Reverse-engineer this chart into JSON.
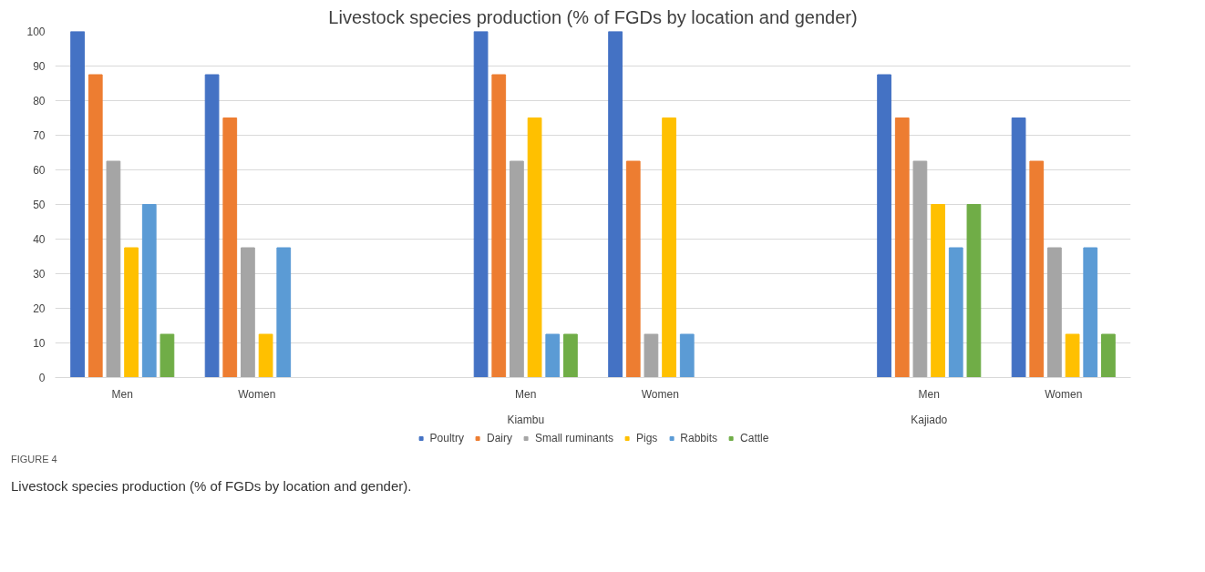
{
  "chart_data": {
    "type": "bar",
    "title": "Livestock species production (% of FGDs by location and gender)",
    "categories": [
      "Men",
      "Women",
      null,
      "Men",
      "Women",
      null,
      "Men",
      "Women"
    ],
    "series": [
      {
        "name": "Poultry",
        "color": "#4472c4",
        "values": [
          100,
          87.5,
          null,
          100,
          100,
          null,
          87.5,
          75
        ]
      },
      {
        "name": "Dairy",
        "color": "#ed7d31",
        "values": [
          87.5,
          75,
          null,
          87.5,
          62.5,
          null,
          75,
          62.5
        ]
      },
      {
        "name": "Small ruminants",
        "color": "#a5a5a5",
        "values": [
          62.5,
          37.5,
          null,
          62.5,
          12.5,
          null,
          62.5,
          37.5
        ]
      },
      {
        "name": "Pigs",
        "color": "#ffc000",
        "values": [
          37.5,
          12.5,
          null,
          75,
          75,
          null,
          50,
          12.5
        ]
      },
      {
        "name": "Rabbits",
        "color": "#5b9bd5",
        "values": [
          50,
          37.5,
          null,
          12.5,
          12.5,
          null,
          37.5,
          37.5
        ]
      },
      {
        "name": "Cattle",
        "color": "#70ad47",
        "values": [
          12.5,
          0,
          null,
          12.5,
          0,
          null,
          50,
          12.5
        ]
      }
    ],
    "ylim": [
      0,
      100
    ],
    "yticks": [
      0,
      10,
      20,
      30,
      40,
      50,
      60,
      70,
      80,
      90,
      100
    ],
    "grid": "y",
    "legend": "bottom",
    "annotations": [
      "Kiambu",
      "Kajiado",
      "FIGURE 4",
      "Livestock species production (% of FGDs by location and gender)."
    ]
  }
}
